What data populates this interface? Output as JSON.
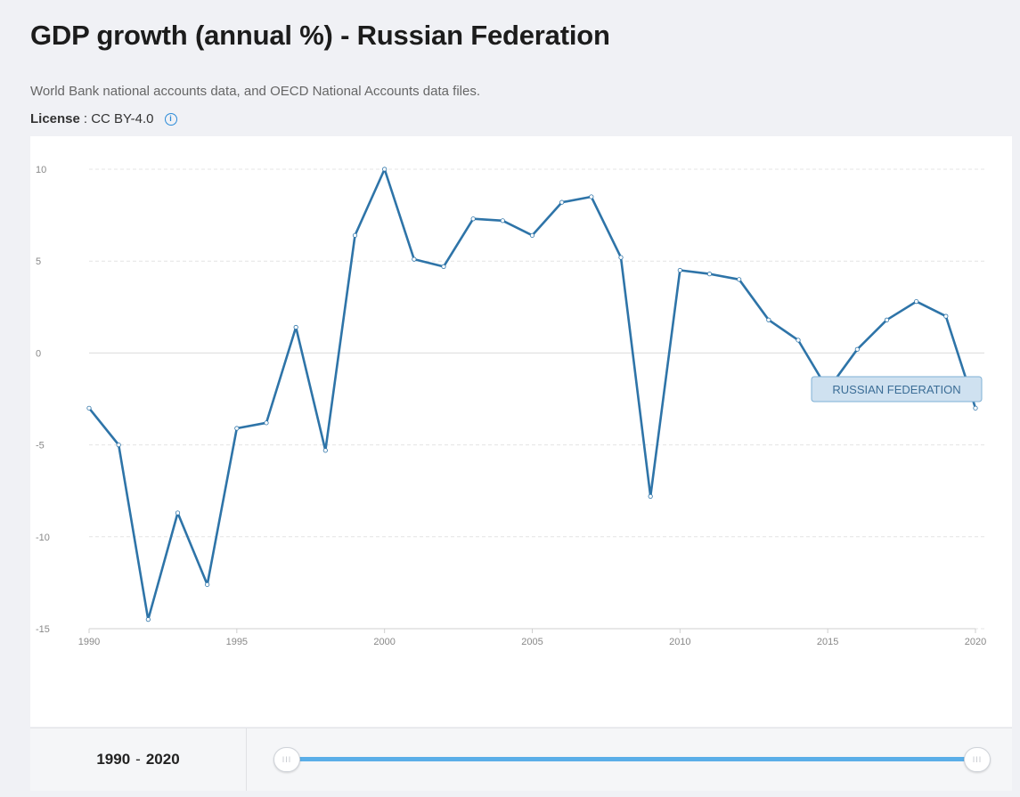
{
  "header": {
    "title": "GDP growth (annual %) - Russian Federation",
    "source": "World Bank national accounts data, and OECD National Accounts data files.",
    "license_label": "License",
    "license_value": ": CC BY-4.0",
    "info_icon": "info-icon"
  },
  "chart_data": {
    "type": "line",
    "title": "",
    "xlabel": "",
    "ylabel": "",
    "xlim": [
      1990,
      2020
    ],
    "ylim": [
      -15,
      10
    ],
    "x_ticks": [
      "1990",
      "1995",
      "2000",
      "2005",
      "2010",
      "2015",
      "2020"
    ],
    "y_ticks": [
      "10",
      "5",
      "0",
      "-5",
      "-10",
      "-15"
    ],
    "grid": true,
    "series_color": "#2e74a8",
    "series": [
      {
        "name": "RUSSIAN FEDERATION",
        "x": [
          1990,
          1991,
          1992,
          1993,
          1994,
          1995,
          1996,
          1997,
          1998,
          1999,
          2000,
          2001,
          2002,
          2003,
          2004,
          2005,
          2006,
          2007,
          2008,
          2009,
          2010,
          2011,
          2012,
          2013,
          2014,
          2015,
          2016,
          2017,
          2018,
          2019,
          2020
        ],
        "values": [
          -3.0,
          -5.0,
          -14.5,
          -8.7,
          -12.6,
          -4.1,
          -3.8,
          1.4,
          -5.3,
          6.4,
          10.0,
          5.1,
          4.7,
          7.3,
          7.2,
          6.4,
          8.2,
          8.5,
          5.2,
          -7.8,
          4.5,
          4.3,
          4.0,
          1.8,
          0.7,
          -2.0,
          0.2,
          1.8,
          2.8,
          2.0,
          -3.0
        ]
      }
    ]
  },
  "range": {
    "start": "1990",
    "separator": "-",
    "end": "2020",
    "handle_glyph": "III"
  }
}
